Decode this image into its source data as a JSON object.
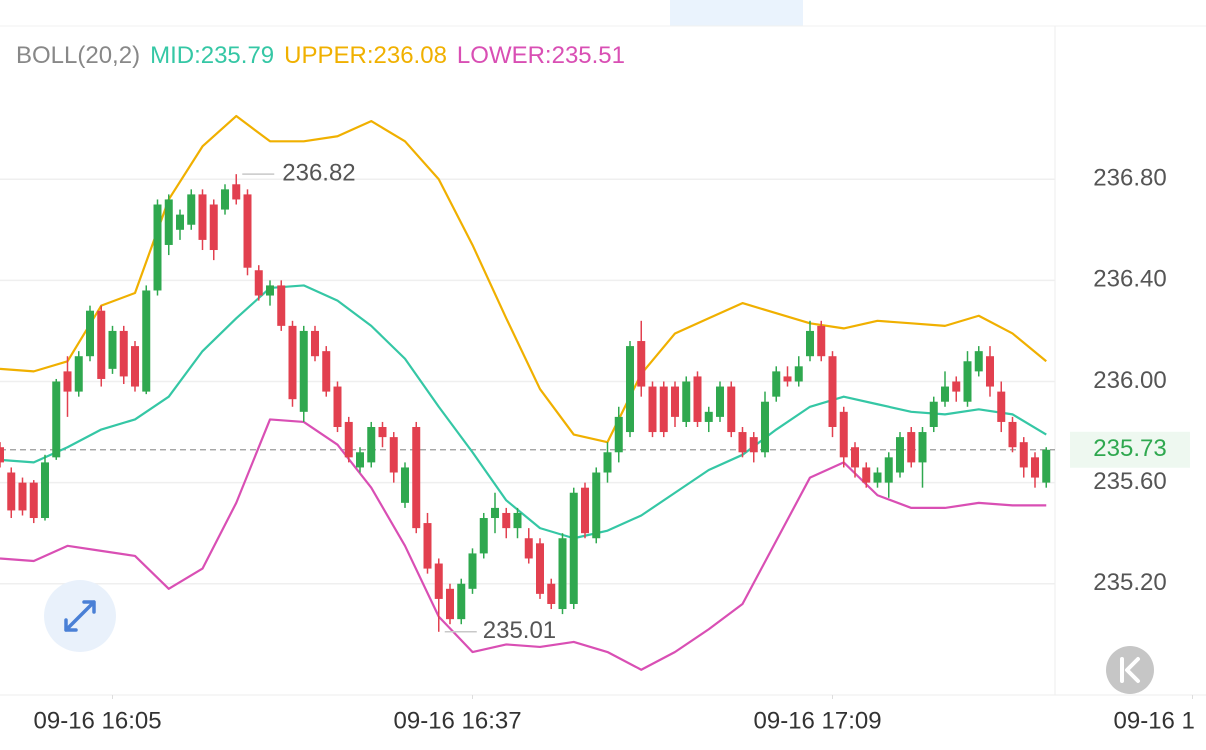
{
  "chart_data": {
    "type": "candlestick",
    "indicator": "BOLL(20,2)",
    "indicator_color": "#888888",
    "candles": {
      "up_color": "#2fa84f",
      "down_color": "#e2404f",
      "open": [
        235.74,
        235.64,
        235.6,
        235.6,
        235.46,
        235.7,
        236.04,
        235.96,
        236.1,
        236.28,
        236.05,
        236.2,
        236.14,
        235.96,
        236.36,
        236.54,
        236.6,
        236.62,
        236.74,
        236.7,
        236.68,
        236.78,
        236.74,
        236.44,
        236.34,
        236.38,
        236.22,
        235.88,
        236.2,
        236.12,
        235.98,
        235.84,
        235.66,
        235.68,
        235.82,
        235.78,
        235.52,
        235.82,
        235.44,
        235.28,
        235.18,
        235.06,
        235.18,
        235.32,
        235.46,
        235.48,
        235.42,
        235.38,
        235.36,
        235.2,
        235.1,
        235.12,
        235.58,
        235.38,
        235.64,
        235.72,
        235.8,
        236.16,
        235.98,
        235.98,
        235.98,
        235.84,
        236.02,
        235.84,
        235.86,
        235.98,
        235.8,
        235.78,
        235.72,
        235.94,
        236.02,
        236.0,
        236.1,
        236.22,
        236.1,
        235.88,
        235.74,
        235.66,
        235.6,
        235.6,
        235.64,
        235.8,
        235.68,
        235.82,
        235.92,
        236.0,
        235.92,
        236.04,
        236.1,
        235.96,
        235.84,
        235.76,
        235.7,
        235.6
      ],
      "high": [
        235.76,
        235.66,
        235.62,
        235.61,
        235.71,
        236.01,
        236.1,
        236.12,
        236.3,
        236.3,
        236.22,
        236.22,
        236.16,
        236.38,
        236.72,
        236.74,
        236.68,
        236.76,
        236.76,
        236.72,
        236.78,
        236.82,
        236.76,
        236.46,
        236.4,
        236.4,
        236.24,
        236.22,
        236.22,
        236.14,
        236.0,
        235.86,
        235.74,
        235.84,
        235.84,
        235.8,
        235.68,
        235.84,
        235.48,
        235.3,
        235.2,
        235.22,
        235.34,
        235.48,
        235.56,
        235.5,
        235.5,
        235.42,
        235.38,
        235.22,
        235.4,
        235.58,
        235.6,
        235.66,
        235.76,
        235.9,
        236.16,
        236.24,
        236.0,
        236.0,
        236.0,
        236.02,
        236.04,
        235.9,
        236.0,
        236.0,
        235.82,
        235.8,
        235.96,
        236.06,
        236.06,
        236.1,
        236.24,
        236.24,
        236.12,
        235.9,
        235.76,
        235.68,
        235.66,
        235.72,
        235.8,
        235.82,
        235.82,
        235.94,
        236.04,
        236.02,
        236.12,
        236.14,
        236.14,
        236.0,
        235.86,
        235.78,
        235.72,
        235.74
      ],
      "low": [
        235.66,
        235.46,
        235.47,
        235.44,
        235.45,
        235.69,
        235.86,
        235.94,
        236.08,
        235.98,
        236.03,
        235.99,
        235.96,
        235.95,
        236.34,
        236.5,
        236.56,
        236.6,
        236.52,
        236.48,
        236.66,
        236.7,
        236.42,
        236.32,
        236.3,
        236.2,
        235.9,
        235.84,
        236.08,
        235.94,
        235.8,
        235.68,
        235.64,
        235.66,
        235.74,
        235.6,
        235.5,
        235.4,
        235.24,
        235.01,
        235.04,
        235.04,
        235.16,
        235.3,
        235.4,
        235.38,
        235.38,
        235.28,
        235.14,
        235.1,
        235.08,
        235.1,
        235.38,
        235.36,
        235.6,
        235.68,
        235.78,
        235.94,
        235.78,
        235.78,
        235.82,
        235.82,
        235.82,
        235.8,
        235.84,
        235.78,
        235.7,
        235.68,
        235.7,
        235.92,
        235.98,
        235.98,
        236.08,
        236.08,
        235.78,
        235.66,
        235.62,
        235.58,
        235.58,
        235.54,
        235.62,
        235.66,
        235.58,
        235.8,
        235.9,
        235.92,
        235.9,
        236.02,
        235.94,
        235.8,
        235.72,
        235.62,
        235.58,
        235.58
      ],
      "close": [
        235.68,
        235.49,
        235.49,
        235.46,
        235.68,
        236.0,
        235.96,
        236.1,
        236.28,
        236.01,
        236.2,
        236.02,
        235.98,
        236.36,
        236.7,
        236.72,
        236.66,
        236.74,
        236.56,
        236.52,
        236.76,
        236.72,
        236.45,
        236.34,
        236.38,
        236.22,
        235.93,
        236.2,
        236.1,
        235.96,
        235.82,
        235.7,
        235.72,
        235.82,
        235.78,
        235.64,
        235.66,
        235.42,
        235.26,
        235.14,
        235.06,
        235.2,
        235.32,
        235.46,
        235.5,
        235.42,
        235.48,
        235.3,
        235.16,
        235.12,
        235.38,
        235.56,
        235.4,
        235.64,
        235.72,
        235.86,
        236.14,
        235.98,
        235.8,
        235.8,
        235.86,
        236.0,
        235.84,
        235.88,
        235.98,
        235.8,
        235.72,
        235.72,
        235.92,
        236.04,
        236.0,
        236.06,
        236.2,
        236.1,
        235.82,
        235.7,
        235.66,
        235.6,
        235.64,
        235.7,
        235.78,
        235.68,
        235.8,
        235.92,
        235.98,
        235.96,
        236.08,
        236.12,
        235.98,
        235.84,
        235.74,
        235.66,
        235.62,
        235.73
      ]
    },
    "bands": [
      {
        "name": "MID:235.79",
        "color": "#35c7a5",
        "x": [
          0,
          3,
          6,
          9,
          12,
          15,
          18,
          21,
          24,
          27,
          30,
          33,
          36,
          39,
          42,
          45,
          48,
          51,
          54,
          57,
          60,
          63,
          66,
          69,
          72,
          75,
          78,
          81,
          84,
          87,
          90,
          93
        ],
        "values": [
          235.69,
          235.68,
          235.74,
          235.81,
          235.85,
          235.94,
          236.12,
          236.25,
          236.37,
          236.38,
          236.32,
          236.22,
          236.09,
          235.9,
          235.72,
          235.53,
          235.42,
          235.38,
          235.41,
          235.47,
          235.56,
          235.65,
          235.71,
          235.81,
          235.9,
          235.94,
          235.91,
          235.88,
          235.87,
          235.89,
          235.87,
          235.79
        ]
      },
      {
        "name": "UPPER:236.08",
        "color": "#f0b000",
        "x": [
          0,
          3,
          6,
          9,
          12,
          15,
          18,
          21,
          24,
          27,
          30,
          33,
          36,
          39,
          42,
          45,
          48,
          51,
          54,
          57,
          60,
          63,
          66,
          69,
          72,
          75,
          78,
          81,
          84,
          87,
          90,
          93
        ],
        "values": [
          236.05,
          236.04,
          236.08,
          236.3,
          236.35,
          236.72,
          236.93,
          237.05,
          236.95,
          236.95,
          236.97,
          237.03,
          236.95,
          236.8,
          236.54,
          236.25,
          235.97,
          235.79,
          235.76,
          236.03,
          236.19,
          236.25,
          236.31,
          236.27,
          236.23,
          236.21,
          236.24,
          236.23,
          236.22,
          236.26,
          236.19,
          236.08
        ]
      },
      {
        "name": "LOWER:235.51",
        "color": "#d94fb4",
        "x": [
          0,
          3,
          6,
          9,
          12,
          15,
          18,
          21,
          24,
          27,
          30,
          33,
          36,
          39,
          42,
          45,
          48,
          51,
          54,
          57,
          60,
          63,
          66,
          69,
          72,
          75,
          78,
          81,
          84,
          87,
          90,
          93
        ],
        "values": [
          235.3,
          235.29,
          235.35,
          235.33,
          235.31,
          235.18,
          235.26,
          235.52,
          235.85,
          235.84,
          235.75,
          235.58,
          235.35,
          235.07,
          234.93,
          234.96,
          234.95,
          234.97,
          234.93,
          234.86,
          234.93,
          235.02,
          235.12,
          235.37,
          235.62,
          235.68,
          235.55,
          235.5,
          235.5,
          235.52,
          235.51,
          235.51
        ]
      }
    ],
    "ylim": [
      234.76,
      237.41
    ],
    "yticks": [
      {
        "value": 235.2,
        "label": "235.20"
      },
      {
        "value": 235.6,
        "label": "235.60"
      },
      {
        "value": 236,
        "label": "236.00"
      },
      {
        "value": 236.4,
        "label": "236.40"
      },
      {
        "value": 236.8,
        "label": "236.80"
      }
    ],
    "xlim": [
      0,
      107.2
    ],
    "xticks": [
      {
        "value": 10,
        "label": "09-16 16:05"
      },
      {
        "value": 42,
        "label": "09-16 16:37"
      },
      {
        "value": 74,
        "label": "09-16 17:09"
      },
      {
        "value": 106,
        "label": "09-16 1"
      }
    ],
    "grid": true
  }
}
